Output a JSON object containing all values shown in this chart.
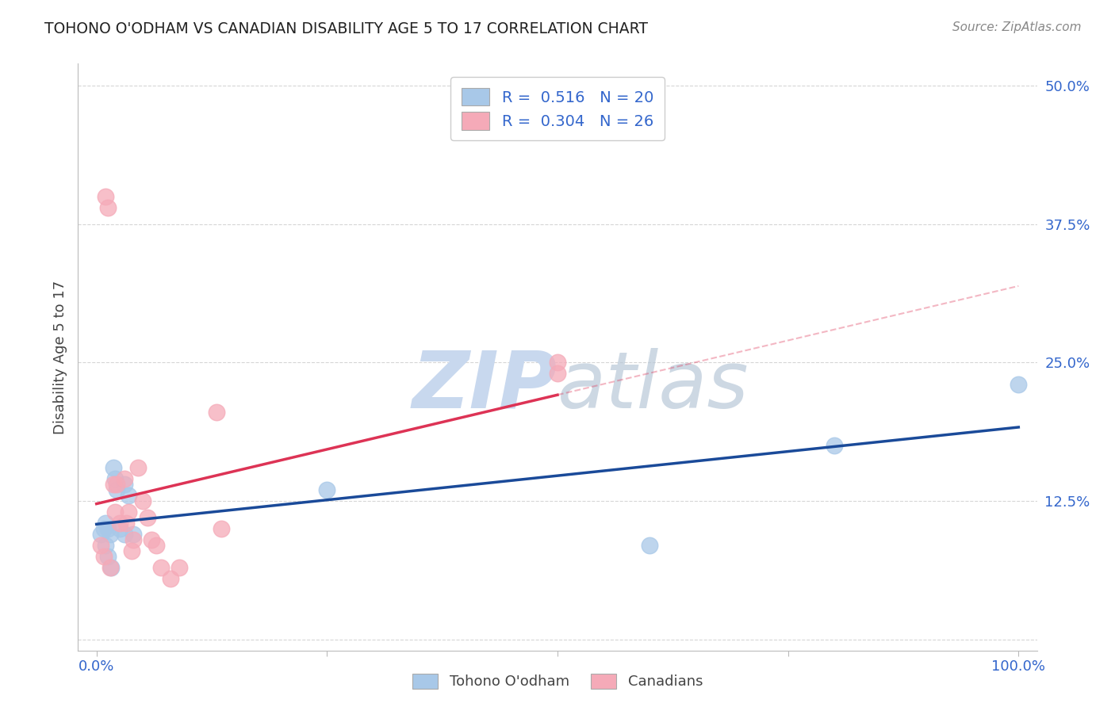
{
  "title": "TOHONO O'ODHAM VS CANADIAN DISABILITY AGE 5 TO 17 CORRELATION CHART",
  "source": "Source: ZipAtlas.com",
  "ylabel": "Disability Age 5 to 17",
  "xlim": [
    -0.02,
    1.02
  ],
  "ylim": [
    -0.01,
    0.52
  ],
  "x_ticks": [
    0.0,
    0.25,
    0.5,
    0.75,
    1.0
  ],
  "x_tick_labels": [
    "0.0%",
    "",
    "",
    "",
    "100.0%"
  ],
  "y_ticks": [
    0.0,
    0.125,
    0.25,
    0.375,
    0.5
  ],
  "y_tick_labels": [
    "",
    "12.5%",
    "25.0%",
    "37.5%",
    "50.0%"
  ],
  "tohono_x": [
    0.005,
    0.008,
    0.01,
    0.012,
    0.015,
    0.018,
    0.02,
    0.022,
    0.025,
    0.03,
    0.03,
    0.035,
    0.04,
    0.25,
    0.6,
    0.8,
    1.0,
    0.01,
    0.012,
    0.016
  ],
  "tohono_y": [
    0.095,
    0.1,
    0.105,
    0.1,
    0.095,
    0.155,
    0.145,
    0.135,
    0.1,
    0.095,
    0.14,
    0.13,
    0.095,
    0.135,
    0.085,
    0.175,
    0.23,
    0.085,
    0.075,
    0.065
  ],
  "canadian_x": [
    0.005,
    0.008,
    0.01,
    0.012,
    0.015,
    0.018,
    0.02,
    0.022,
    0.025,
    0.03,
    0.032,
    0.035,
    0.038,
    0.04,
    0.045,
    0.05,
    0.055,
    0.06,
    0.065,
    0.07,
    0.08,
    0.09,
    0.13,
    0.135,
    0.5,
    0.5
  ],
  "canadian_y": [
    0.085,
    0.075,
    0.4,
    0.39,
    0.065,
    0.14,
    0.115,
    0.14,
    0.105,
    0.145,
    0.105,
    0.115,
    0.08,
    0.09,
    0.155,
    0.125,
    0.11,
    0.09,
    0.085,
    0.065,
    0.055,
    0.065,
    0.205,
    0.1,
    0.25,
    0.24
  ],
  "tohono_color": "#a8c8e8",
  "canadian_color": "#f5aab8",
  "tohono_line_color": "#1a4a99",
  "canadian_line_color": "#dd3355",
  "tohono_R": 0.516,
  "tohono_N": 20,
  "canadian_R": 0.304,
  "canadian_N": 26,
  "legend_label_tohono": "Tohono O'odham",
  "legend_label_canadian": "Canadians",
  "background_color": "#ffffff",
  "grid_color": "#cccccc",
  "title_color": "#222222",
  "axis_label_color": "#444444",
  "tick_label_color_x": "#3366cc",
  "tick_label_color_y": "#3366cc",
  "watermark_color": "#c8d8ee",
  "legend_R_color": "#222244",
  "legend_N_color": "#3366cc"
}
